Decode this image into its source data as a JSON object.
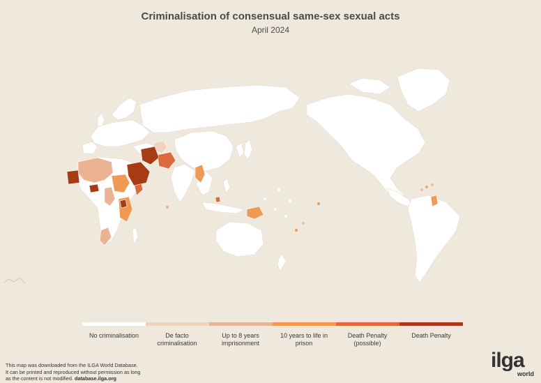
{
  "title": "Criminalisation of consensual same-sex sexual acts",
  "subtitle": "April 2024",
  "legend": [
    {
      "label": "No criminalisation",
      "color": "#ffffff"
    },
    {
      "label": "De facto criminalisation",
      "color": "#f1d3bd"
    },
    {
      "label": "Up to 8 years imprisonment",
      "color": "#ecb393"
    },
    {
      "label": "10 years to life in prison",
      "color": "#ee9a55"
    },
    {
      "label": "Death Penalty (possible)",
      "color": "#dc6a3c"
    },
    {
      "label": "Death Penalty",
      "color": "#a63b14"
    }
  ],
  "footer": {
    "line1": "This map was downloaded from the ILGA World Database.",
    "line2": "It can be printed and reproduced without permission as long",
    "line3": "as the content is not modified.",
    "link": "database.ilga.org"
  },
  "logo": {
    "word": "ilga",
    "sub": "world"
  },
  "colors": {
    "background": "#efe8dc",
    "land": "#ffffff",
    "border": "#e6ded2"
  }
}
